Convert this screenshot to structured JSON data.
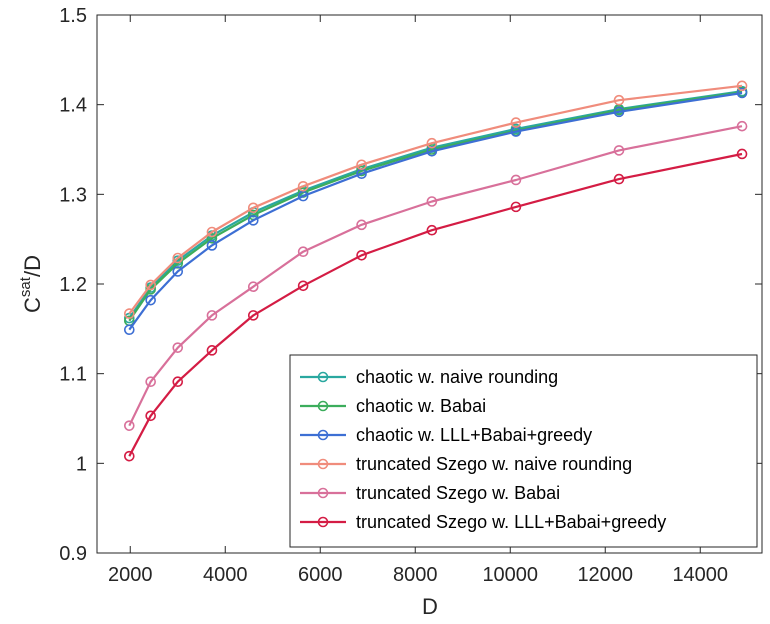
{
  "chart_data": {
    "type": "line",
    "xlabel": "D",
    "ylabel": {
      "base": "C",
      "sup": "sat",
      "rest": "/D"
    },
    "xlim": [
      1300,
      15300
    ],
    "ylim": [
      0.9,
      1.5
    ],
    "xticks": [
      2000,
      4000,
      6000,
      8000,
      10000,
      12000,
      14000
    ],
    "yticks": [
      0.9,
      1.0,
      1.1,
      1.2,
      1.3,
      1.4,
      1.5
    ],
    "ytick_labels": [
      "0.9",
      "1",
      "1.1",
      "1.2",
      "1.3",
      "1.4",
      "1.5"
    ],
    "legend_position": "bottom-right",
    "x": [
      1980,
      2430,
      3000,
      3720,
      4590,
      5640,
      6870,
      8350,
      10120,
      12290,
      14880
    ],
    "series": [
      {
        "name": "chaotic w. naive rounding",
        "color": "#2aa8a0",
        "values": [
          1.162,
          1.196,
          1.226,
          1.254,
          1.28,
          1.304,
          1.328,
          1.352,
          1.373,
          1.395,
          1.415
        ]
      },
      {
        "name": "chaotic w. Babai",
        "color": "#3cad5c",
        "values": [
          1.159,
          1.194,
          1.223,
          1.251,
          1.277,
          1.302,
          1.326,
          1.35,
          1.371,
          1.394,
          1.414
        ]
      },
      {
        "name": "chaotic w. LLL+Babai+greedy",
        "color": "#3d6fd4",
        "values": [
          1.149,
          1.182,
          1.214,
          1.243,
          1.271,
          1.298,
          1.323,
          1.348,
          1.37,
          1.392,
          1.413
        ]
      },
      {
        "name": "truncated Szego w. naive rounding",
        "color": "#f08c7c",
        "values": [
          1.167,
          1.199,
          1.229,
          1.258,
          1.285,
          1.309,
          1.333,
          1.357,
          1.38,
          1.405,
          1.421
        ]
      },
      {
        "name": "truncated Szego w. Babai",
        "color": "#d8709a",
        "values": [
          1.042,
          1.091,
          1.129,
          1.165,
          1.197,
          1.236,
          1.266,
          1.292,
          1.316,
          1.349,
          1.376
        ]
      },
      {
        "name": "truncated Szego w. LLL+Babai+greedy",
        "color": "#d41c44",
        "values": [
          1.008,
          1.053,
          1.091,
          1.126,
          1.165,
          1.198,
          1.232,
          1.26,
          1.286,
          1.317,
          1.345
        ]
      }
    ]
  }
}
